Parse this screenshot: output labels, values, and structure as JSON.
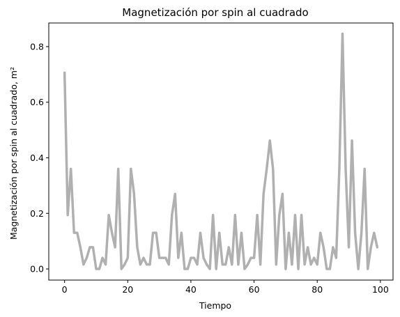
{
  "chart_data": {
    "type": "line",
    "title": "Magnetización por spin al cuadrado",
    "xlabel": "Tiempo",
    "ylabel": "Magnetización por spin al cuadrado, m²",
    "xlim": [
      -5,
      104
    ],
    "ylim": [
      -0.04,
      0.885
    ],
    "xticks": [
      0,
      20,
      40,
      60,
      80,
      100
    ],
    "yticks": [
      0.0,
      0.2,
      0.4,
      0.6,
      0.8
    ],
    "xtick_labels": [
      "0",
      "20",
      "40",
      "60",
      "80",
      "100"
    ],
    "ytick_labels": [
      "0.0",
      "0.2",
      "0.4",
      "0.6",
      "0.8"
    ],
    "grid": false,
    "series": [
      {
        "color": "#b0b0b0",
        "x": [
          0,
          1,
          2,
          3,
          4,
          5,
          6,
          7,
          8,
          9,
          10,
          11,
          12,
          13,
          14,
          15,
          16,
          17,
          18,
          19,
          20,
          21,
          22,
          23,
          24,
          25,
          26,
          27,
          28,
          29,
          30,
          31,
          32,
          33,
          34,
          35,
          36,
          37,
          38,
          39,
          40,
          41,
          42,
          43,
          44,
          45,
          46,
          47,
          48,
          49,
          50,
          51,
          52,
          53,
          54,
          55,
          56,
          57,
          58,
          59,
          60,
          61,
          62,
          63,
          64,
          65,
          66,
          67,
          68,
          69,
          70,
          71,
          72,
          73,
          74,
          75,
          76,
          77,
          78,
          79,
          80,
          81,
          82,
          83,
          84,
          85,
          86,
          87,
          88,
          89,
          90,
          91,
          92,
          93,
          94,
          95,
          96,
          97,
          98,
          99
        ],
        "y": [
          0.706,
          0.194,
          0.36,
          0.13,
          0.13,
          0.078,
          0.016,
          0.04,
          0.078,
          0.078,
          0.0,
          0.0,
          0.04,
          0.016,
          0.194,
          0.13,
          0.078,
          0.36,
          0.0,
          0.016,
          0.04,
          0.36,
          0.27,
          0.078,
          0.016,
          0.04,
          0.016,
          0.016,
          0.13,
          0.13,
          0.04,
          0.04,
          0.04,
          0.016,
          0.194,
          0.27,
          0.04,
          0.13,
          0.0,
          0.0,
          0.04,
          0.04,
          0.016,
          0.13,
          0.04,
          0.016,
          0.0,
          0.194,
          0.0,
          0.13,
          0.016,
          0.016,
          0.078,
          0.016,
          0.194,
          0.016,
          0.13,
          0.0,
          0.016,
          0.04,
          0.04,
          0.194,
          0.016,
          0.27,
          0.36,
          0.462,
          0.36,
          0.016,
          0.194,
          0.27,
          0.0,
          0.13,
          0.016,
          0.194,
          0.0,
          0.194,
          0.016,
          0.078,
          0.016,
          0.04,
          0.016,
          0.13,
          0.078,
          0.0,
          0.0,
          0.078,
          0.04,
          0.36,
          0.846,
          0.36,
          0.078,
          0.462,
          0.13,
          0.0,
          0.13,
          0.36,
          0.0,
          0.078,
          0.13,
          0.078
        ]
      }
    ]
  }
}
